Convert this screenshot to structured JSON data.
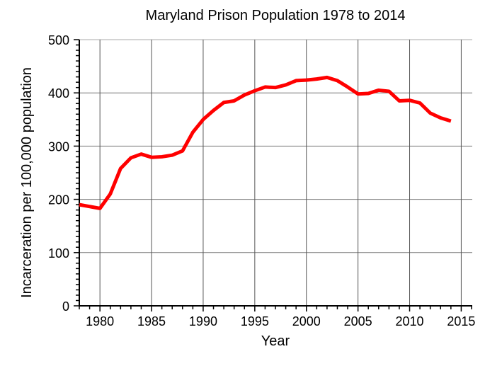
{
  "chart_data": {
    "type": "line",
    "title": "Maryland Prison Population 1978 to 2014",
    "xlabel": "Year",
    "ylabel": "Incarceration per 100,000 population",
    "xlim": [
      1978,
      2016
    ],
    "ylim": [
      0,
      500
    ],
    "xticks": [
      1980,
      1985,
      1990,
      1995,
      2000,
      2005,
      2010,
      2015
    ],
    "yticks": [
      0,
      100,
      200,
      300,
      400,
      500
    ],
    "grid": true,
    "line_color": "#ff0000",
    "series": [
      {
        "x": [
          1978,
          1980,
          1981,
          1982,
          1983,
          1984,
          1985,
          1986,
          1987,
          1988,
          1989,
          1990,
          1991,
          1992,
          1993,
          1994,
          1995,
          1996,
          1997,
          1998,
          1999,
          2000,
          2001,
          2002,
          2003,
          2004,
          2005,
          2006,
          2007,
          2008,
          2009,
          2010,
          2011,
          2012,
          2013,
          2014
        ],
        "y": [
          190,
          183,
          210,
          258,
          278,
          285,
          279,
          280,
          283,
          291,
          326,
          350,
          367,
          382,
          385,
          396,
          404,
          411,
          410,
          415,
          423,
          424,
          426,
          429,
          423,
          411,
          398,
          399,
          405,
          403,
          385,
          386,
          381,
          362,
          353,
          347
        ]
      }
    ]
  }
}
